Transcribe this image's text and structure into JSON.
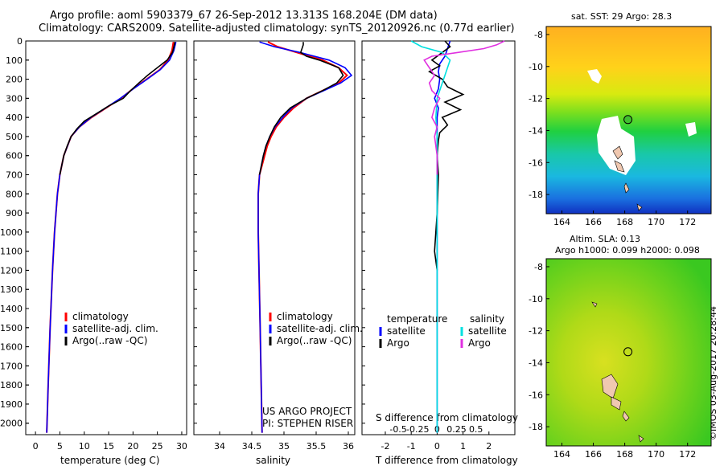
{
  "header": {
    "title1": "Argo profile: aoml 5903379_67 26-Sep-2012 13.313S 168.204E (DM data)",
    "title2": "Climatology: CARS2009. Satellite-adjusted climatology: synTS_20120926.nc (0.77d earlier)"
  },
  "watermark": "©IMOS 03-Aug-2017 20:28:44",
  "project": {
    "line1": "US ARGO PROJECT",
    "line2": "PI: STEPHEN RISER"
  },
  "colors": {
    "climatology": "#ff0000",
    "satellite": "#0000ff",
    "argo": "#000000",
    "s_satellite": "#00e0e0",
    "s_argo": "#e030e0"
  },
  "chart_data": [
    {
      "type": "line",
      "name": "temperature-profile",
      "xlabel": "temperature (deg C)",
      "ylabel": "",
      "xlim": [
        -2,
        31
      ],
      "ylim": [
        2060,
        0
      ],
      "xticks": [
        "0",
        "5",
        "10",
        "15",
        "20",
        "25",
        "30"
      ],
      "xtick_values": [
        0,
        5,
        10,
        15,
        20,
        25,
        30
      ],
      "yticks": [
        "0",
        "100",
        "200",
        "300",
        "400",
        "500",
        "600",
        "700",
        "800",
        "900",
        "1000",
        "1100",
        "1200",
        "1300",
        "1400",
        "1500",
        "1600",
        "1700",
        "1800",
        "1900",
        "2000"
      ],
      "ytick_values": [
        0,
        100,
        200,
        300,
        400,
        500,
        600,
        700,
        800,
        900,
        1000,
        1100,
        1200,
        1300,
        1400,
        1500,
        1600,
        1700,
        1800,
        1900,
        2000
      ],
      "legend": [
        "climatology",
        "satellite-adj. clim.",
        "Argo(..raw -QC)"
      ],
      "series": [
        {
          "name": "climatology",
          "color": "#ff0000",
          "depth": [
            5,
            50,
            100,
            150,
            200,
            250,
            300,
            350,
            400,
            450,
            500,
            600,
            700,
            800,
            1000,
            1200,
            1500,
            1800,
            2050
          ],
          "values": [
            28.3,
            28.0,
            27.2,
            25.5,
            22.8,
            20.0,
            17.5,
            14.5,
            11.5,
            9.0,
            7.3,
            5.8,
            5.0,
            4.5,
            3.9,
            3.5,
            3.0,
            2.6,
            2.3
          ]
        },
        {
          "name": "satellite-adj. clim.",
          "color": "#0000ff",
          "depth": [
            5,
            50,
            100,
            150,
            200,
            250,
            300,
            350,
            400,
            450,
            500,
            600,
            700,
            800,
            1000,
            1200,
            1500,
            1800,
            2050
          ],
          "values": [
            28.8,
            28.4,
            27.5,
            25.6,
            22.9,
            20.1,
            17.4,
            14.4,
            11.4,
            9.0,
            7.3,
            5.8,
            5.0,
            4.5,
            3.9,
            3.5,
            3.0,
            2.6,
            2.3
          ]
        },
        {
          "name": "Argo(..raw -QC)",
          "color": "#000000",
          "depth": [
            5,
            30,
            60,
            100,
            140,
            180,
            220,
            260,
            300,
            340,
            380,
            420,
            460,
            500,
            550,
            600,
            700
          ],
          "values": [
            28.6,
            28.4,
            28.1,
            27.0,
            25.0,
            23.0,
            21.2,
            19.5,
            18.0,
            15.0,
            12.5,
            10.0,
            8.5,
            7.3,
            6.5,
            5.8,
            5.0
          ]
        }
      ]
    },
    {
      "type": "line",
      "name": "salinity-profile",
      "xlabel": "salinity",
      "xlim": [
        33.6,
        36.1
      ],
      "ylim": [
        2060,
        0
      ],
      "xticks": [
        "34",
        "34.5",
        "35",
        "35.5",
        "36"
      ],
      "xtick_values": [
        34,
        34.5,
        35,
        35.5,
        36
      ],
      "legend": [
        "climatology",
        "satellite-adj. clim.",
        "Argo(..raw -QC)"
      ],
      "series": [
        {
          "name": "climatology",
          "color": "#ff0000",
          "depth": [
            5,
            30,
            60,
            100,
            140,
            180,
            220,
            260,
            300,
            350,
            400,
            450,
            500,
            550,
            600,
            650,
            700,
            800,
            1000,
            1500,
            2050
          ],
          "values": [
            34.75,
            34.9,
            35.2,
            35.6,
            35.85,
            35.98,
            35.85,
            35.6,
            35.35,
            35.15,
            35.0,
            34.88,
            34.8,
            34.74,
            34.7,
            34.66,
            34.62,
            34.6,
            34.6,
            34.63,
            34.66
          ]
        },
        {
          "name": "satellite-adj. clim.",
          "color": "#0000ff",
          "depth": [
            5,
            30,
            60,
            100,
            140,
            180,
            220,
            260,
            300,
            350,
            400,
            450,
            500,
            550,
            600,
            650,
            700,
            800,
            1000,
            1500,
            2050
          ],
          "values": [
            34.62,
            34.85,
            35.25,
            35.7,
            35.95,
            36.05,
            35.88,
            35.62,
            35.35,
            35.12,
            34.98,
            34.86,
            34.78,
            34.72,
            34.68,
            34.65,
            34.62,
            34.6,
            34.6,
            34.63,
            34.66
          ]
        },
        {
          "name": "Argo(..raw -QC)",
          "color": "#000000",
          "depth": [
            5,
            20,
            40,
            60,
            80,
            100,
            140,
            180,
            220,
            260,
            300,
            350,
            400,
            450,
            500,
            550,
            600,
            700
          ],
          "values": [
            35.3,
            35.3,
            35.28,
            35.26,
            35.35,
            35.55,
            35.85,
            35.92,
            35.82,
            35.6,
            35.35,
            35.1,
            34.95,
            34.85,
            34.78,
            34.72,
            34.68,
            34.62
          ]
        }
      ]
    },
    {
      "type": "line",
      "name": "difference-profile",
      "xlabel": "T difference from climatology",
      "xlabel2": "S difference from climatology",
      "xlim": [
        -2.9,
        3.0
      ],
      "ylim": [
        2060,
        0
      ],
      "xticks": [
        "-2",
        "-1",
        "0",
        "1",
        "2"
      ],
      "xtick_values": [
        -2,
        -1,
        0,
        1,
        2
      ],
      "xticks_top": [
        "-0.5",
        "-0.25",
        "0",
        "0.25",
        "0.5"
      ],
      "xticks_top_values": [
        -1.5,
        -0.75,
        0,
        0.75,
        1.5
      ],
      "legend_temperature": {
        "title": "temperature",
        "items": [
          "satellite",
          "Argo"
        ]
      },
      "legend_salinity": {
        "title": "salinity",
        "items": [
          "satellite",
          "Argo"
        ]
      },
      "series": [
        {
          "name": "temperature satellite",
          "color": "#0000ff",
          "depth": [
            0,
            40,
            80,
            120,
            160,
            200,
            250,
            300,
            350,
            400,
            500,
            700,
            1000,
            1500,
            2050
          ],
          "values": [
            0.5,
            0.4,
            0.3,
            0.1,
            0.05,
            0.1,
            0.05,
            -0.1,
            0.05,
            0.0,
            0.0,
            0.0,
            0.0,
            0.0,
            0.0
          ]
        },
        {
          "name": "temperature Argo",
          "color": "#000000",
          "depth": [
            0,
            30,
            60,
            100,
            130,
            160,
            200,
            240,
            280,
            320,
            360,
            400,
            440,
            480,
            520,
            600,
            700,
            900,
            1100,
            1200
          ],
          "values": [
            0.3,
            0.5,
            0.2,
            -0.2,
            0.1,
            -0.3,
            0.2,
            0.4,
            1.0,
            0.3,
            0.9,
            0.2,
            0.4,
            0.1,
            0.05,
            0.0,
            0.05,
            0.0,
            -0.1,
            0.0
          ]
        },
        {
          "name": "salinity satellite",
          "color": "#00e0e0",
          "depth": [
            0,
            30,
            60,
            100,
            140,
            180,
            220,
            260,
            300,
            400,
            500,
            700,
            1000,
            1500,
            2050
          ],
          "values": [
            -1.0,
            -0.6,
            0.2,
            0.5,
            0.4,
            0.3,
            0.2,
            0.1,
            0.0,
            -0.05,
            0.0,
            0.0,
            0.0,
            0.0,
            0.0
          ]
        },
        {
          "name": "salinity Argo",
          "color": "#e030e0",
          "depth": [
            0,
            20,
            40,
            60,
            80,
            100,
            140,
            180,
            220,
            260,
            300,
            350,
            400,
            450,
            500,
            600,
            700
          ],
          "values": [
            2.6,
            2.3,
            1.8,
            0.8,
            -0.2,
            -0.5,
            -0.3,
            -0.1,
            -0.3,
            -0.2,
            0.1,
            -0.1,
            -0.2,
            0.0,
            -0.1,
            0.0,
            0.0
          ]
        }
      ]
    },
    {
      "type": "heatmap",
      "name": "sst-map",
      "title": "sat. SST: 29 Argo: 28.3",
      "xlim": [
        163,
        173.5
      ],
      "ylim": [
        -19.2,
        -7.5
      ],
      "xticks": [
        "164",
        "166",
        "168",
        "170",
        "172"
      ],
      "xtick_values": [
        164,
        166,
        168,
        170,
        172
      ],
      "yticks": [
        "-8",
        "-10",
        "-12",
        "-14",
        "-16",
        "-18"
      ],
      "ytick_values": [
        -8,
        -10,
        -12,
        -14,
        -16,
        -18
      ],
      "profile_location": {
        "lon": 168.204,
        "lat": -13.313
      }
    },
    {
      "type": "heatmap",
      "name": "sla-map",
      "title": "Altim. SLA: 0.13",
      "subtitle": "Argo h1000: 0.099 h2000: 0.098",
      "xlim": [
        163,
        173.5
      ],
      "ylim": [
        -19.2,
        -7.5
      ],
      "xticks": [
        "164",
        "166",
        "168",
        "170",
        "172"
      ],
      "xtick_values": [
        164,
        166,
        168,
        170,
        172
      ],
      "yticks": [
        "-8",
        "-10",
        "-12",
        "-14",
        "-16",
        "-18"
      ],
      "ytick_values": [
        -8,
        -10,
        -12,
        -14,
        -16,
        -18
      ],
      "profile_location": {
        "lon": 168.204,
        "lat": -13.313
      }
    }
  ]
}
